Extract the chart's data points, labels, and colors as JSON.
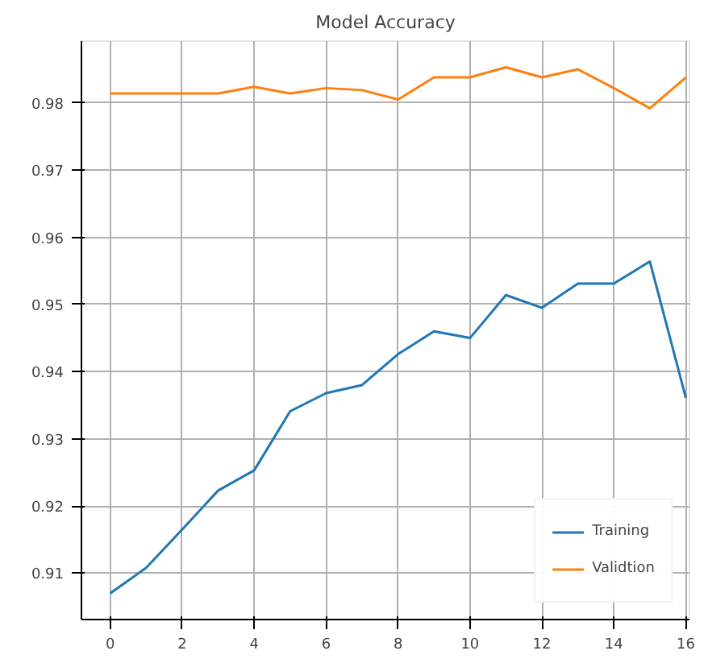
{
  "chart_data": {
    "type": "line",
    "title": "Model Accuracy",
    "x": [
      0,
      1,
      2,
      3,
      4,
      5,
      6,
      7,
      8,
      9,
      10,
      11,
      12,
      13,
      14,
      15,
      16
    ],
    "series": [
      {
        "name": "Training",
        "color": "#1f77b4",
        "values": [
          0.907,
          0.9108,
          0.9165,
          0.9223,
          0.9253,
          0.9341,
          0.9368,
          0.938,
          0.9426,
          0.946,
          0.945,
          0.9514,
          0.9495,
          0.9531,
          0.9531,
          0.9564,
          0.9361
        ]
      },
      {
        "name": "Validtion",
        "color": "#ff7f0e",
        "values": [
          0.9814,
          0.9814,
          0.9814,
          0.9814,
          0.9824,
          0.9814,
          0.9822,
          0.9819,
          0.9805,
          0.9838,
          0.9838,
          0.9853,
          0.9838,
          0.985,
          0.9822,
          0.9792,
          0.9838
        ]
      }
    ],
    "xlim": [
      -0.8,
      16.1
    ],
    "ylim": [
      0.9031,
      0.9892
    ],
    "xticks": [
      0,
      2,
      4,
      6,
      8,
      10,
      12,
      14,
      16
    ],
    "yticks": [
      0.91,
      0.92,
      0.93,
      0.94,
      0.95,
      0.96,
      0.97,
      0.98
    ],
    "grid": true,
    "legend": "bottom right",
    "line_style": "solid"
  }
}
